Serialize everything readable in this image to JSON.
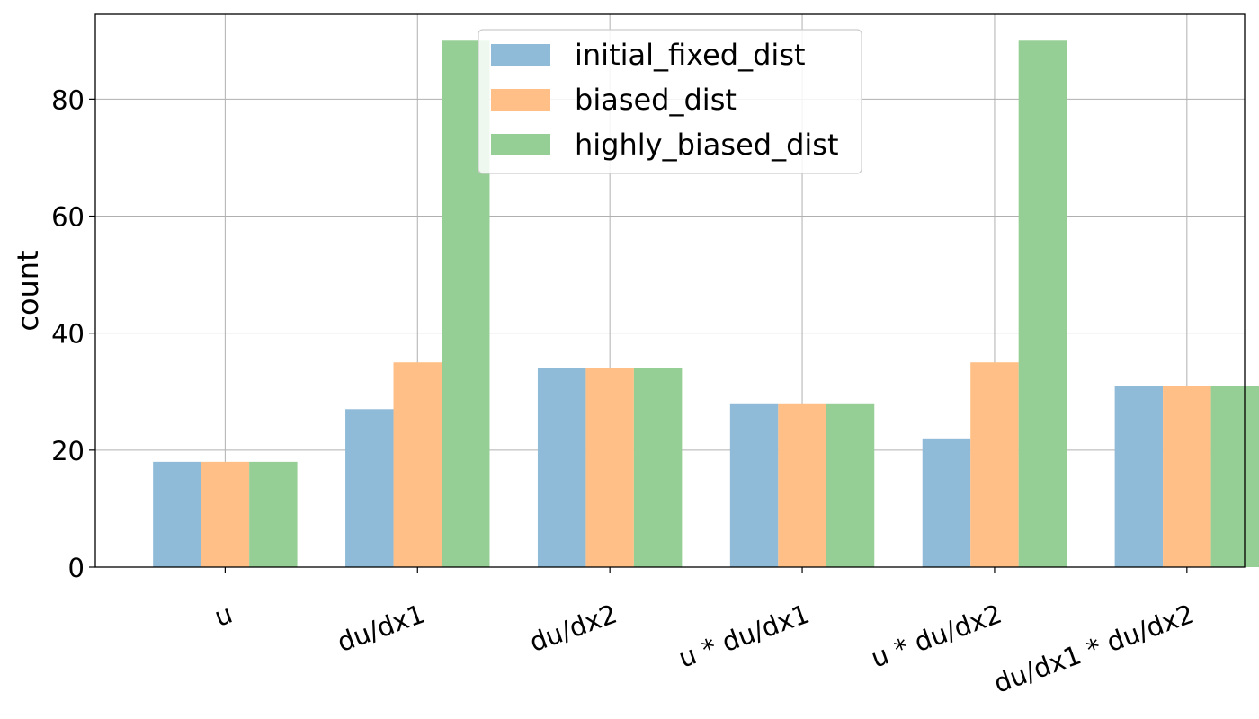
{
  "chart_data": {
    "type": "bar",
    "categories": [
      "u",
      "du/dx1",
      "du/dx2",
      "u * du/dx1",
      "u * du/dx2",
      "du/dx1 * du/dx2"
    ],
    "series": [
      {
        "name": "initial_fixed_dist",
        "color": "#8fbbd9",
        "values": [
          18,
          27,
          34,
          28,
          22,
          31
        ]
      },
      {
        "name": "biased_dist",
        "color": "#ffbf86",
        "values": [
          18,
          35,
          34,
          28,
          35,
          31
        ]
      },
      {
        "name": "highly_biased_dist",
        "color": "#96cf95",
        "values": [
          18,
          90,
          34,
          28,
          90,
          31
        ]
      }
    ],
    "xlabel": "",
    "ylabel": "count",
    "ylim": [
      0,
      94.5
    ],
    "yticks": [
      0,
      20,
      40,
      60,
      80
    ],
    "grid": true,
    "legend_position": "top-center"
  }
}
